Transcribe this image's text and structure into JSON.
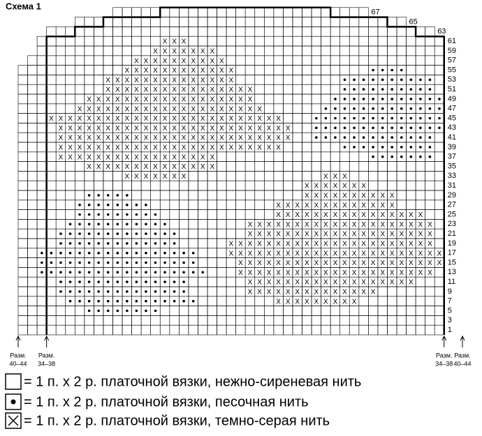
{
  "title": "Схема 1",
  "row_labels": [
    1,
    3,
    5,
    7,
    9,
    11,
    13,
    15,
    17,
    19,
    21,
    23,
    25,
    27,
    29,
    31,
    33,
    35,
    37,
    39,
    41,
    43,
    45,
    47,
    49,
    51,
    53,
    55,
    57,
    59,
    61
  ],
  "top_labels": [
    63,
    65,
    67
  ],
  "size_marks": [
    {
      "label": "Разм.",
      "sizes": "40–44"
    },
    {
      "label": "Разм.",
      "sizes": "34–38"
    },
    {
      "label": "Разм.",
      "sizes": "34–38"
    },
    {
      "label": "Разм.",
      "sizes": "40–44"
    }
  ],
  "legend": [
    "= 1 п. х 2 р. платочной вязки, нежно-сиреневая нить",
    "= 1 п. х 2 р. платочной вязки, песочная нить",
    "= 1 п. х 2 р. платочной вязки, темно-серая нить"
  ]
}
